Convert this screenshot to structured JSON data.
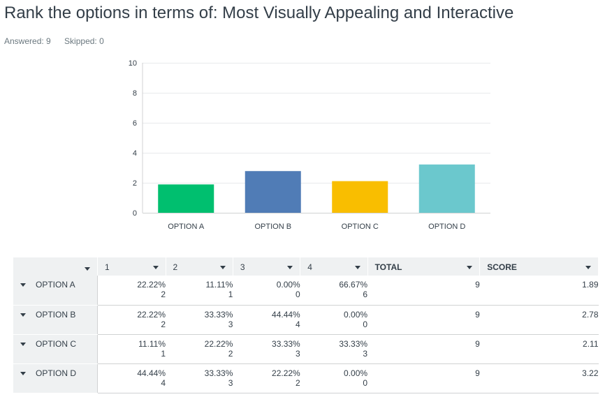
{
  "title": "Rank the options in terms of: Most Visually Appealing and Interactive",
  "answered_label": "Answered: 9",
  "skipped_label": "Skipped: 0",
  "colors": {
    "option_a": "#00bf6f",
    "option_b": "#507cb6",
    "option_c": "#f9be00",
    "option_d": "#6bc8cd"
  },
  "chart_data": {
    "type": "bar",
    "categories": [
      "OPTION A",
      "OPTION B",
      "OPTION C",
      "OPTION D"
    ],
    "values": [
      1.89,
      2.78,
      2.11,
      3.22
    ],
    "ylim": [
      0,
      10
    ],
    "yticks": [
      "0",
      "2",
      "4",
      "6",
      "8",
      "10"
    ],
    "grid": true
  },
  "table": {
    "headers": [
      "1",
      "2",
      "3",
      "4",
      "TOTAL",
      "SCORE"
    ],
    "rows": [
      {
        "label": "OPTION A",
        "cells": [
          [
            "22.22%",
            "2"
          ],
          [
            "11.11%",
            "1"
          ],
          [
            "0.00%",
            "0"
          ],
          [
            "66.67%",
            "6"
          ]
        ],
        "total": "9",
        "score": "1.89"
      },
      {
        "label": "OPTION B",
        "cells": [
          [
            "22.22%",
            "2"
          ],
          [
            "33.33%",
            "3"
          ],
          [
            "44.44%",
            "4"
          ],
          [
            "0.00%",
            "0"
          ]
        ],
        "total": "9",
        "score": "2.78"
      },
      {
        "label": "OPTION C",
        "cells": [
          [
            "11.11%",
            "1"
          ],
          [
            "22.22%",
            "2"
          ],
          [
            "33.33%",
            "3"
          ],
          [
            "33.33%",
            "3"
          ]
        ],
        "total": "9",
        "score": "2.11"
      },
      {
        "label": "OPTION D",
        "cells": [
          [
            "44.44%",
            "4"
          ],
          [
            "33.33%",
            "3"
          ],
          [
            "22.22%",
            "2"
          ],
          [
            "0.00%",
            "0"
          ]
        ],
        "total": "9",
        "score": "3.22"
      }
    ]
  }
}
